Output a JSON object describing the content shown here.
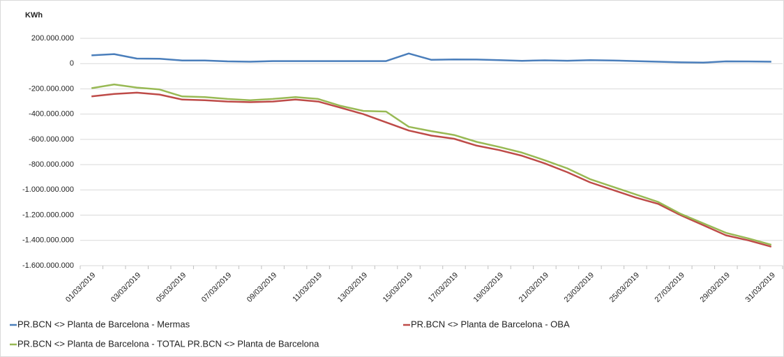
{
  "chart_data": {
    "type": "line",
    "y_axis_label": "KWh",
    "categories": [
      "01/03/2019",
      null,
      "03/03/2019",
      null,
      "05/03/2019",
      null,
      "07/03/2019",
      null,
      "09/03/2019",
      null,
      "11/03/2019",
      null,
      "13/03/2019",
      null,
      "15/03/2019",
      null,
      "17/03/2019",
      null,
      "19/03/2019",
      null,
      "21/03/2019",
      null,
      "23/03/2019",
      null,
      "25/03/2019",
      null,
      "27/03/2019",
      null,
      "29/03/2019",
      null,
      "31/03/2019"
    ],
    "series": [
      {
        "name": "PR.BCN <> Planta de Barcelona - Mermas",
        "color": "#4a7ebb",
        "values": [
          65000000,
          75000000,
          40000000,
          38000000,
          25000000,
          25000000,
          18000000,
          15000000,
          20000000,
          20000000,
          20000000,
          20000000,
          20000000,
          20000000,
          80000000,
          30000000,
          33000000,
          32000000,
          28000000,
          22000000,
          26000000,
          23000000,
          27000000,
          25000000,
          20000000,
          15000000,
          10000000,
          8000000,
          18000000,
          17000000,
          15000000
        ]
      },
      {
        "name": "PR.BCN <> Planta de Barcelona - OBA",
        "color": "#be4b48",
        "values": [
          -260000000,
          -240000000,
          -230000000,
          -245000000,
          -285000000,
          -290000000,
          -300000000,
          -305000000,
          -300000000,
          -285000000,
          -300000000,
          -350000000,
          -400000000,
          -465000000,
          -530000000,
          -570000000,
          -595000000,
          -650000000,
          -685000000,
          -730000000,
          -790000000,
          -860000000,
          -940000000,
          -1000000000,
          -1060000000,
          -1110000000,
          -1200000000,
          -1280000000,
          -1360000000,
          -1400000000,
          -1450000000
        ]
      },
      {
        "name": "PR.BCN <> Planta de Barcelona - TOTAL PR.BCN <> Planta de Barcelona",
        "color": "#98b954",
        "values": [
          -195000000,
          -165000000,
          -190000000,
          -205000000,
          -260000000,
          -265000000,
          -280000000,
          -290000000,
          -280000000,
          -265000000,
          -280000000,
          -335000000,
          -375000000,
          -380000000,
          -500000000,
          -535000000,
          -565000000,
          -620000000,
          -660000000,
          -705000000,
          -765000000,
          -830000000,
          -915000000,
          -975000000,
          -1035000000,
          -1095000000,
          -1190000000,
          -1265000000,
          -1340000000,
          -1385000000,
          -1435000000
        ]
      }
    ],
    "ylim": [
      -1600000000,
      200000000
    ],
    "yticks": [
      {
        "value": -1600000000,
        "label": "-1.600.000.000"
      },
      {
        "value": -1400000000,
        "label": "-1.400.000.000"
      },
      {
        "value": -1200000000,
        "label": "-1.200.000.000"
      },
      {
        "value": -1000000000,
        "label": "-1.000.000.000"
      },
      {
        "value": -800000000,
        "label": "-800.000.000"
      },
      {
        "value": -600000000,
        "label": "-600.000.000"
      },
      {
        "value": -400000000,
        "label": "-400.000.000"
      },
      {
        "value": -200000000,
        "label": "-200.000.000"
      },
      0,
      {
        "value": 200000000,
        "label": "200.000.000"
      }
    ],
    "grid": true,
    "legend": "bottom"
  }
}
